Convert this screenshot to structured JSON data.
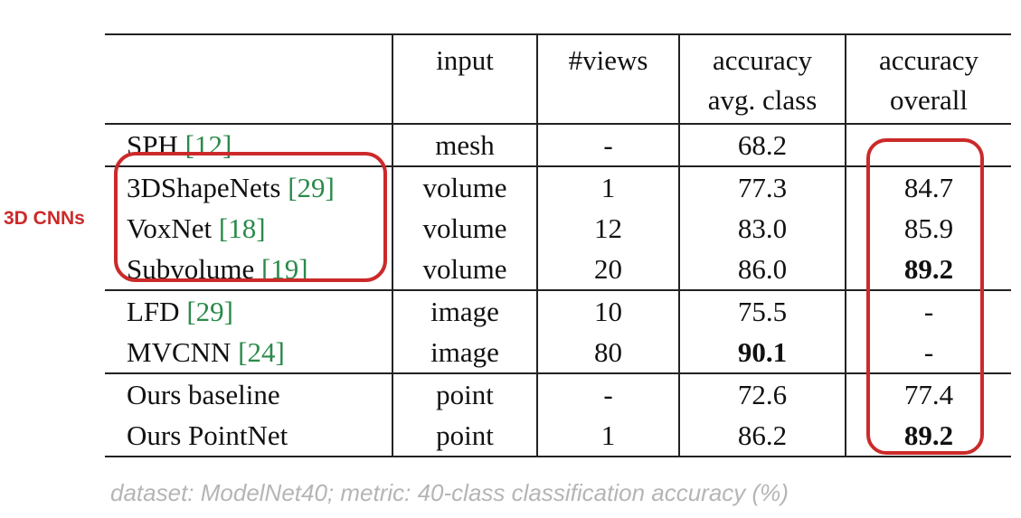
{
  "table": {
    "headers": [
      "",
      "input",
      "#views",
      "accuracy\navg. class",
      "accuracy\noverall"
    ],
    "header_lines": {
      "col3": [
        "accuracy",
        "avg. class"
      ],
      "col4": [
        "accuracy",
        "overall"
      ]
    },
    "rows": [
      {
        "method": "SPH",
        "cite": "[12]",
        "input": "mesh",
        "views": "-",
        "avg_class": "68.2",
        "overall": ""
      },
      {
        "method": "3DShapeNets",
        "cite": "[29]",
        "input": "volume",
        "views": "1",
        "avg_class": "77.3",
        "overall": "84.7"
      },
      {
        "method": "VoxNet",
        "cite": "[18]",
        "input": "volume",
        "views": "12",
        "avg_class": "83.0",
        "overall": "85.9"
      },
      {
        "method": "Subvolume",
        "cite": "[19]",
        "input": "volume",
        "views": "20",
        "avg_class": "86.0",
        "overall": "89.2"
      },
      {
        "method": "LFD",
        "cite": "[29]",
        "input": "image",
        "views": "10",
        "avg_class": "75.5",
        "overall": "-"
      },
      {
        "method": "MVCNN",
        "cite": "[24]",
        "input": "image",
        "views": "80",
        "avg_class": "90.1",
        "overall": "-"
      },
      {
        "method": "Ours baseline",
        "cite": "",
        "input": "point",
        "views": "-",
        "avg_class": "72.6",
        "overall": "77.4"
      },
      {
        "method": "Ours PointNet",
        "cite": "",
        "input": "point",
        "views": "1",
        "avg_class": "86.2",
        "overall": "89.2"
      }
    ]
  },
  "annotation": "3D CNNs",
  "caption": "dataset: ModelNet40; metric: 40-class classification accuracy (%)",
  "colors": {
    "highlight": "#cc2a2a",
    "cite": "#2a8a4a",
    "caption": "#b5b5b5"
  }
}
